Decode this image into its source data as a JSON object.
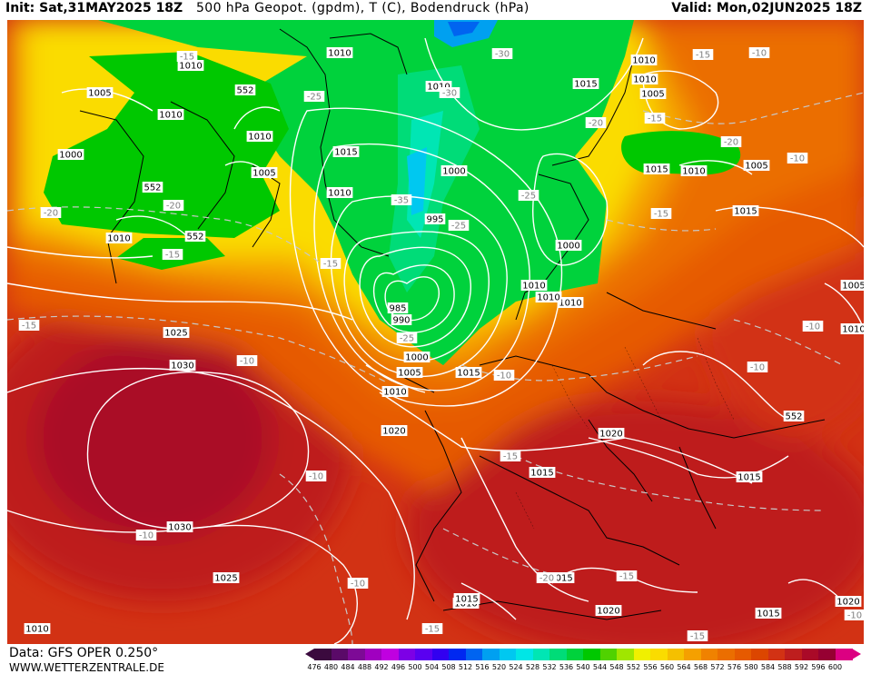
{
  "header": {
    "init": "Init: Sat,31MAY2025 18Z",
    "title": "500 hPa Geopot. (gpdm), T (C), Bodendruck (hPa)",
    "valid": "Valid: Mon,02JUN2025 18Z"
  },
  "footer": {
    "data": "Data: GFS OPER 0.250°",
    "site": "WWW.WETTERZENTRALE.DE"
  },
  "legend": {
    "labels": [
      "476",
      "480",
      "484",
      "488",
      "492",
      "496",
      "500",
      "504",
      "508",
      "512",
      "516",
      "520",
      "524",
      "528",
      "532",
      "536",
      "540",
      "544",
      "548",
      "552",
      "556",
      "560",
      "564",
      "568",
      "572",
      "576",
      "580",
      "584",
      "588",
      "592",
      "596",
      "600"
    ],
    "colors": [
      "#3b0a3e",
      "#5a0a68",
      "#7d0a96",
      "#a000c0",
      "#c000e0",
      "#7d00e6",
      "#5a00f0",
      "#3200f0",
      "#0028f0",
      "#0064f0",
      "#00a0f0",
      "#00c8f0",
      "#00e6e6",
      "#00e6b4",
      "#00dc78",
      "#00d23c",
      "#00c800",
      "#50d200",
      "#a0e600",
      "#f0f000",
      "#fadc00",
      "#f5c000",
      "#f5a000",
      "#f08200",
      "#eb6e00",
      "#e65a00",
      "#dc4600",
      "#d23214",
      "#be1e1e",
      "#aa0a28",
      "#960032",
      "#dc0082"
    ]
  },
  "map": {
    "pressure_labels": [
      "1010",
      "1005",
      "1010",
      "552",
      "1010",
      "1010",
      "552",
      "552",
      "1010",
      "1005",
      "1010",
      "1010",
      "1015",
      "1015",
      "1010",
      "1005",
      "1000",
      "995",
      "985",
      "990",
      "1000",
      "1005",
      "1010",
      "1015",
      "1025",
      "1030",
      "1020",
      "1030",
      "1025",
      "1020",
      "1015",
      "1010",
      "1015",
      "1020",
      "1010",
      "1015",
      "1005",
      "1000",
      "1010",
      "1005",
      "1010",
      "1015",
      "1010",
      "1010",
      "552",
      "1015",
      "1020",
      "1015",
      "1010",
      "1015",
      "1000",
      "1010"
    ],
    "temp_labels": [
      "-15",
      "-25",
      "-30",
      "-30",
      "-20",
      "-15",
      "-20",
      "-20",
      "-15",
      "-25",
      "-35",
      "-25",
      "-15",
      "-15",
      "-10",
      "-10",
      "-10",
      "-25",
      "-20",
      "-15",
      "-15",
      "-10",
      "-10",
      "-20",
      "-15",
      "-15",
      "-15",
      "-10",
      "-10",
      "-10",
      "-10",
      "-10",
      "-15"
    ]
  }
}
